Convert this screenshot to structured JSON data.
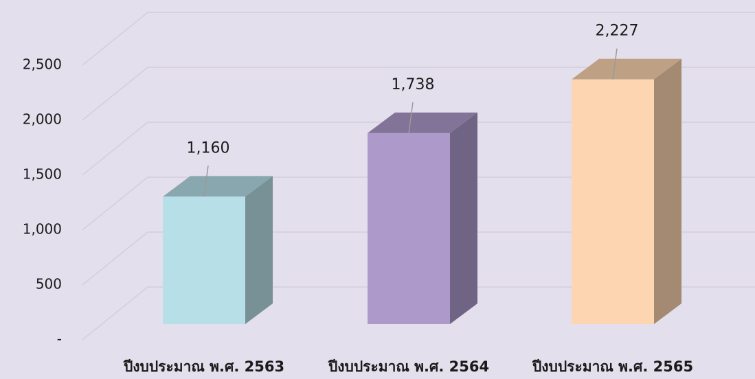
{
  "chart_data": {
    "type": "bar3d",
    "categories": [
      "ปีงบประมาณ พ.ศ. 2563",
      "ปีงบประมาณ พ.ศ. 2564",
      "ปีงบประมาณ พ.ศ. 2565"
    ],
    "values": [
      1160,
      1738,
      2227
    ],
    "value_labels": [
      "1,160",
      "1,738",
      "2,227"
    ],
    "colors": [
      "#b7dfe8",
      "#ad9acb",
      "#fdd5b1"
    ],
    "ylim": [
      0,
      2500
    ],
    "yticks": [
      {
        "value": 0,
        "label": "-"
      },
      500,
      {
        "value": 1000,
        "label": "1,000"
      },
      {
        "value": 1500,
        "label": "1,500"
      },
      {
        "value": 2000,
        "label": "2,000"
      },
      {
        "value": 2500,
        "label": "2,500"
      }
    ],
    "grid": true
  }
}
